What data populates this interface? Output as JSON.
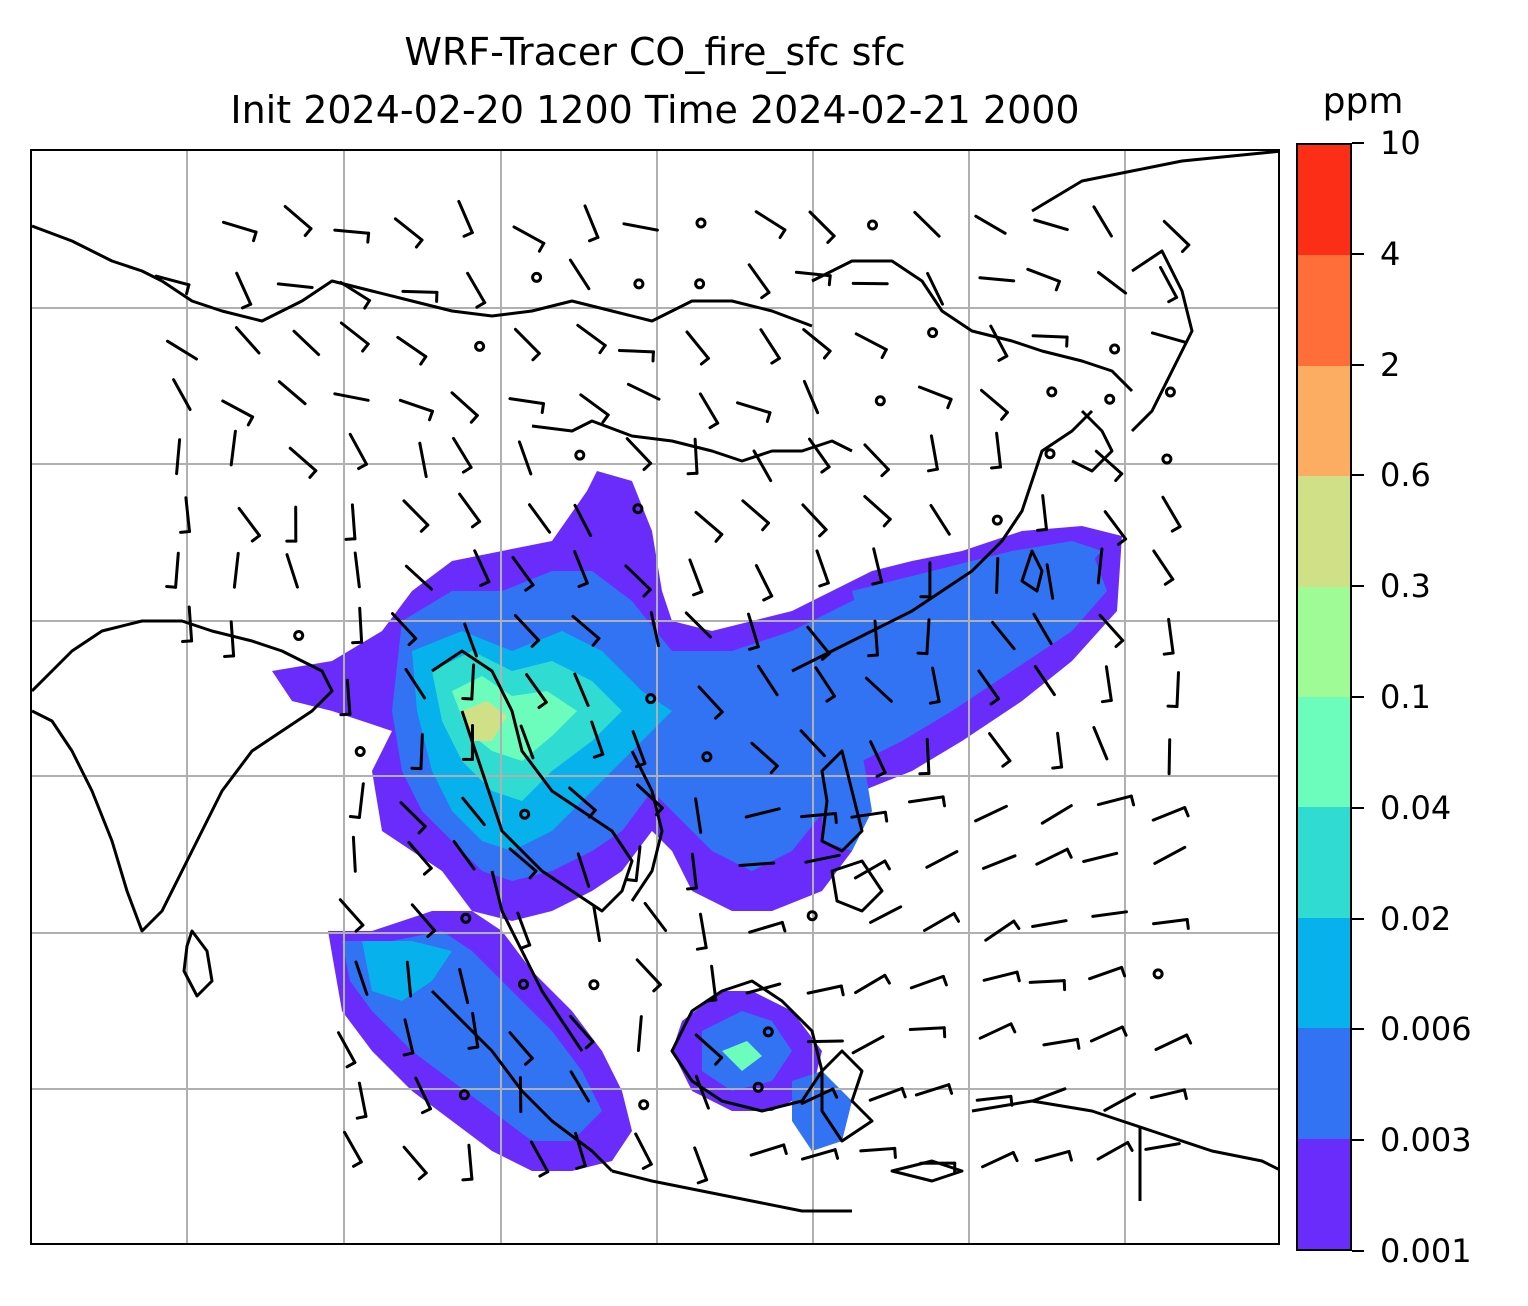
{
  "title": {
    "line1": "WRF-Tracer CO_fire_sfc sfc",
    "line2": "Init 2024-02-20 1200 Time 2024-02-21 2000"
  },
  "colorbar": {
    "unit": "ppm",
    "levels": [
      "0.001",
      "0.003",
      "0.006",
      "0.02",
      "0.04",
      "0.1",
      "0.3",
      "0.6",
      "2",
      "4",
      "10"
    ],
    "colors": [
      "#6a2cfb",
      "#3173f2",
      "#06b1ec",
      "#30dbd2",
      "#6cfdbd",
      "#9efb96",
      "#cfe086",
      "#fcad61",
      "#ff6e38",
      "#fd2e17"
    ]
  },
  "map": {
    "plume_colors": {
      "light": "#6a2cfb",
      "mid": "#3173f2",
      "cyan": "#06b1ec",
      "teal": "#30dbd2",
      "green": "#6cfdbd",
      "yellow": "#cfe086"
    },
    "gridline_color": "#b0b0b0",
    "coastline_color": "#000000"
  }
}
